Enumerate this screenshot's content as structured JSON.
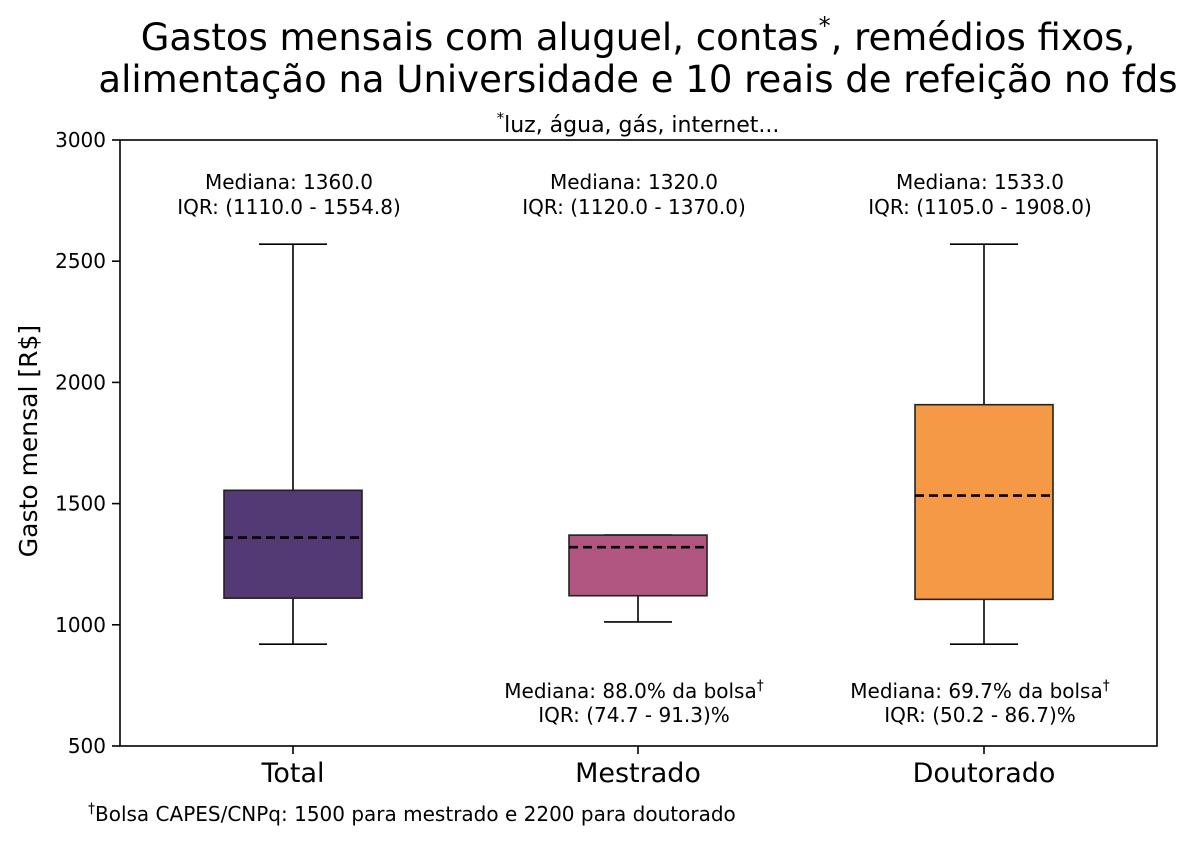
{
  "chart_data": {
    "type": "box",
    "title_line1": "Gastos mensais com aluguel, contas",
    "title_star": "*",
    "title_line1_end": ", remédios fixos,",
    "title_line2": "alimentação na Universidade e 10 reais de refeição no fds",
    "subtitle_star": "*",
    "subtitle": "luz, água, gás, internet...",
    "ylabel": "Gasto mensal [R$]",
    "ylim": [
      500,
      3000
    ],
    "yticks": [
      500,
      1000,
      1500,
      2000,
      2500,
      3000
    ],
    "grid": false,
    "categories": [
      "Total",
      "Mestrado",
      "Doutorado"
    ],
    "boxes": [
      {
        "name": "Total",
        "color": "#543a74",
        "whisker_low": 920,
        "q1": 1110.0,
        "median": 1360.0,
        "q3": 1554.8,
        "whisker_high": 2570,
        "label_top_1": "Mediana: 1360.0",
        "label_top_2": "IQR: (1110.0 - 1554.8)"
      },
      {
        "name": "Mestrado",
        "color": "#b15680",
        "whisker_low": 1012,
        "q1": 1120.0,
        "median": 1320.0,
        "q3": 1370.0,
        "whisker_high": 1370,
        "label_top_1": "Mediana: 1320.0",
        "label_top_2": "IQR: (1120.0 - 1370.0)",
        "label_bottom_1": "Mediana: 88.0% da bolsa",
        "label_bottom_dagger": "†",
        "label_bottom_2": "IQR: (74.7 - 91.3)%"
      },
      {
        "name": "Doutorado",
        "color": "#f69946",
        "whisker_low": 920,
        "q1": 1105.0,
        "median": 1533.0,
        "q3": 1908.0,
        "whisker_high": 2570,
        "label_top_1": "Mediana: 1533.0",
        "label_top_2": "IQR: (1105.0 - 1908.0)",
        "label_bottom_1": "Mediana: 69.7% da bolsa",
        "label_bottom_dagger": "†",
        "label_bottom_2": "IQR: (50.2 - 86.7)%"
      }
    ],
    "footnote_dagger": "†",
    "footnote": "Bolsa CAPES/CNPq: 1500 para mestrado e 2200 para doutorado"
  }
}
